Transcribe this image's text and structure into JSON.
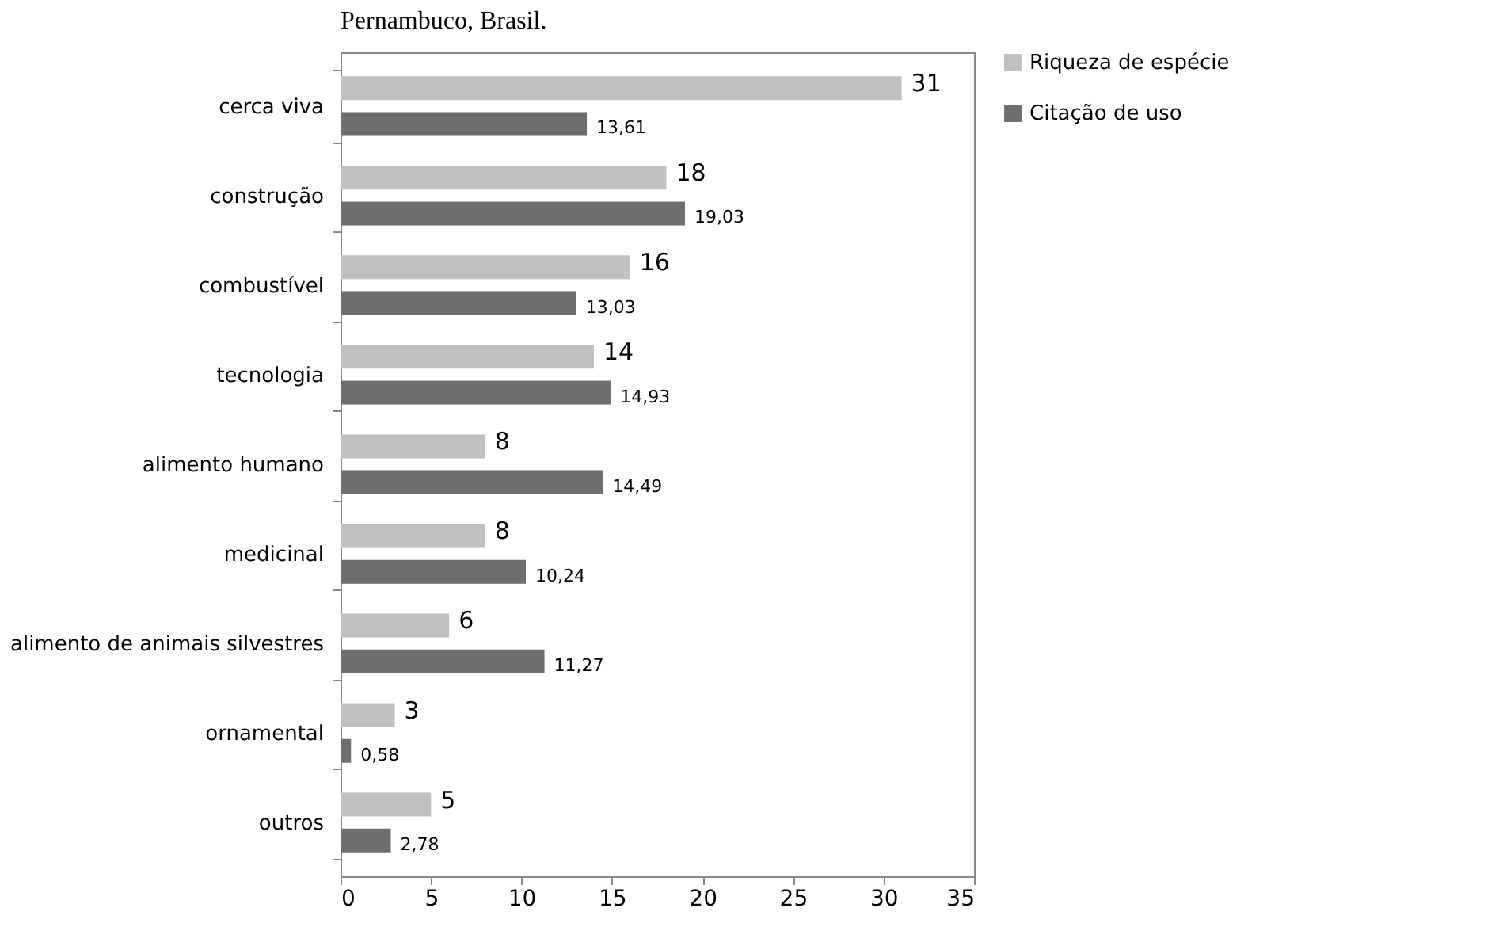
{
  "chart_data": {
    "type": "bar",
    "orientation": "horizontal",
    "title": "Pernambuco, Brasil.",
    "categories": [
      "cerca viva",
      "construção",
      "combustível",
      "tecnologia",
      "alimento humano",
      "medicinal",
      "alimento de animais silvestres",
      "ornamental",
      "outros"
    ],
    "series": [
      {
        "name": "Riqueza de espécie",
        "color": "#c0c0c0",
        "values": [
          31,
          18,
          16,
          14,
          8,
          8,
          6,
          3,
          5
        ],
        "value_labels": [
          "31",
          "18",
          "16",
          "14",
          "8",
          "8",
          "6",
          "3",
          "5"
        ]
      },
      {
        "name": "Citação de uso",
        "color": "#6e6e6e",
        "values": [
          13.61,
          19.03,
          13.03,
          14.93,
          14.49,
          10.24,
          11.27,
          0.58,
          2.78
        ],
        "value_labels": [
          "13,61",
          "19,03",
          "13,03",
          "14,93",
          "14,49",
          "10,24",
          "11,27",
          "0,58",
          "2,78"
        ]
      }
    ],
    "xlim": [
      0,
      35
    ],
    "xticks": [
      0,
      5,
      10,
      15,
      20,
      25,
      30,
      35
    ],
    "grid": false,
    "legend": "right"
  }
}
